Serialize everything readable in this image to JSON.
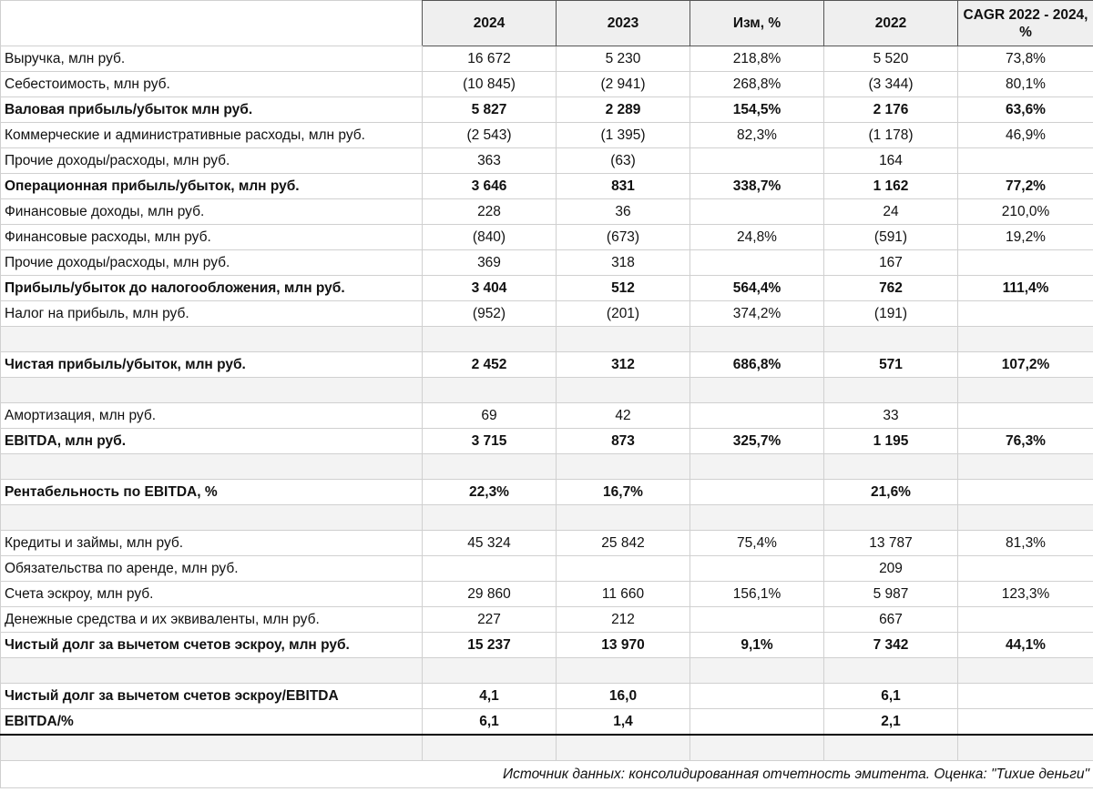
{
  "table": {
    "columns": [
      "2024",
      "2023",
      "Изм, %",
      "2022",
      "CAGR 2022 - 2024, %"
    ],
    "rows": [
      {
        "label": "Выручка, млн руб.",
        "cells": [
          "16 672",
          "5 230",
          "218,8%",
          "5 520",
          "73,8%"
        ]
      },
      {
        "label": "Себестоимость, млн руб.",
        "cells": [
          "(10 845)",
          "(2 941)",
          "268,8%",
          "(3 344)",
          "80,1%"
        ]
      },
      {
        "label": "Валовая прибыль/убыток млн руб.",
        "bold": true,
        "cells": [
          "5 827",
          "2 289",
          "154,5%",
          "2 176",
          "63,6%"
        ]
      },
      {
        "label": "Коммерческие и административные расходы, млн руб.",
        "cells": [
          "(2 543)",
          "(1 395)",
          "82,3%",
          "(1 178)",
          "46,9%"
        ]
      },
      {
        "label": "Прочие доходы/расходы, млн руб.",
        "cells": [
          "363",
          "(63)",
          null,
          "164",
          null
        ]
      },
      {
        "label": "Операционная прибыль/убыток, млн руб.",
        "bold": true,
        "cells": [
          "3 646",
          "831",
          "338,7%",
          "1 162",
          "77,2%"
        ]
      },
      {
        "label": "Финансовые доходы, млн руб.",
        "cells": [
          "228",
          "36",
          null,
          "24",
          "210,0%"
        ]
      },
      {
        "label": "Финансовые расходы, млн руб.",
        "cells": [
          "(840)",
          "(673)",
          "24,8%",
          "(591)",
          "19,2%"
        ]
      },
      {
        "label": "Прочие доходы/расходы, млн руб.",
        "cells": [
          "369",
          "318",
          null,
          "167",
          null
        ]
      },
      {
        "label": "Прибыль/убыток до налогообложения, млн руб.",
        "bold": true,
        "cells": [
          "3 404",
          "512",
          "564,4%",
          "762",
          "111,4%"
        ]
      },
      {
        "label": "Налог на прибыль, млн руб.",
        "cells": [
          "(952)",
          "(201)",
          "374,2%",
          "(191)",
          null
        ]
      },
      null,
      {
        "label": "Чистая прибыль/убыток, млн руб.",
        "bold": true,
        "cells": [
          "2 452",
          "312",
          "686,8%",
          "571",
          "107,2%"
        ]
      },
      null,
      {
        "label": "Амортизация, млн руб.",
        "cells": [
          "69",
          "42",
          null,
          "33",
          null
        ]
      },
      {
        "label": "EBITDA, млн руб.",
        "bold": true,
        "cells": [
          "3 715",
          "873",
          "325,7%",
          "1 195",
          "76,3%"
        ]
      },
      null,
      {
        "label": "Рентабельность по EBITDA, %",
        "bold": true,
        "cells": [
          "22,3%",
          "16,7%",
          null,
          "21,6%",
          null
        ]
      },
      null,
      {
        "label": "Кредиты и займы, млн руб.",
        "cells": [
          "45 324",
          "25 842",
          "75,4%",
          "13 787",
          "81,3%"
        ]
      },
      {
        "label": "Обязательства по аренде, млн руб.",
        "cells": [
          null,
          null,
          null,
          "209",
          null
        ]
      },
      {
        "label": "Счета эскроу, млн руб.",
        "cells": [
          "29 860",
          "11 660",
          "156,1%",
          "5 987",
          "123,3%"
        ]
      },
      {
        "label": "Денежные средства и их эквиваленты, млн руб.",
        "cells": [
          "227",
          "212",
          null,
          "667",
          null
        ]
      },
      {
        "label": "Чистый долг за вычетом счетов эскроу, млн руб.",
        "bold": true,
        "cells": [
          "15 237",
          "13 970",
          "9,1%",
          "7 342",
          "44,1%"
        ]
      },
      null,
      {
        "label": "Чистый долг за вычетом счетов эскроу/EBITDA",
        "bold": true,
        "cells": [
          "4,1",
          "16,0",
          null,
          "6,1",
          null
        ]
      },
      {
        "label": "EBITDA/%",
        "bold": true,
        "cells": [
          "6,1",
          "1,4",
          null,
          "2,1",
          null
        ]
      }
    ],
    "source": "Источник данных: консолидированная отчетность эмитента. Оценка: \"Тихие деньги\""
  }
}
